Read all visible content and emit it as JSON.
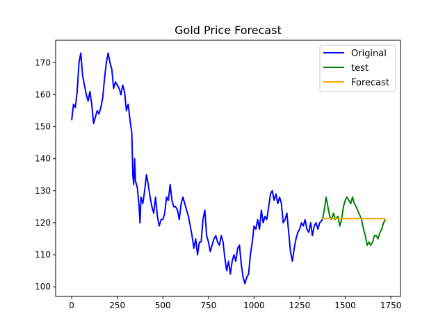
{
  "chart_data": {
    "type": "line",
    "title": "Gold Price Forecast",
    "xlabel": "",
    "ylabel": "",
    "xlim": [
      -88,
      1803
    ],
    "ylim": [
      97,
      177
    ],
    "xticks": [
      0,
      250,
      500,
      750,
      1000,
      1250,
      1500,
      1750
    ],
    "yticks": [
      100,
      110,
      120,
      130,
      140,
      150,
      160,
      170
    ],
    "grid": false,
    "legend_position": "top-right",
    "series": [
      {
        "name": "Original",
        "color": "#0000ff",
        "x": [
          0,
          10,
          20,
          30,
          40,
          50,
          60,
          70,
          80,
          90,
          100,
          110,
          120,
          130,
          140,
          150,
          160,
          170,
          180,
          190,
          200,
          210,
          220,
          230,
          240,
          250,
          260,
          270,
          280,
          290,
          300,
          310,
          320,
          330,
          335,
          340,
          345,
          350,
          360,
          370,
          375,
          380,
          390,
          400,
          410,
          420,
          430,
          440,
          450,
          460,
          470,
          480,
          490,
          500,
          510,
          520,
          530,
          540,
          550,
          560,
          570,
          580,
          590,
          600,
          610,
          620,
          630,
          640,
          650,
          660,
          670,
          680,
          690,
          700,
          710,
          720,
          730,
          740,
          750,
          760,
          770,
          780,
          790,
          800,
          810,
          820,
          830,
          840,
          850,
          860,
          870,
          880,
          890,
          900,
          910,
          920,
          930,
          940,
          950,
          960,
          970,
          980,
          990,
          1000,
          1010,
          1020,
          1030,
          1040,
          1050,
          1060,
          1070,
          1080,
          1090,
          1100,
          1110,
          1120,
          1130,
          1140,
          1150,
          1160,
          1170,
          1180,
          1190,
          1200,
          1210,
          1220,
          1230,
          1240,
          1250,
          1260,
          1270,
          1280,
          1290,
          1300,
          1310,
          1320,
          1330,
          1340,
          1350,
          1360,
          1375
        ],
        "y": [
          152,
          157,
          156,
          161,
          170,
          173,
          166,
          163,
          160,
          158,
          161,
          157,
          151,
          153,
          155,
          154,
          156,
          159,
          165,
          170,
          173,
          170,
          168,
          162,
          164,
          163,
          162,
          160,
          163,
          161,
          155,
          157,
          152,
          148,
          135,
          132,
          140,
          133,
          131,
          125,
          120,
          128,
          126,
          130,
          135,
          132,
          128,
          125,
          123,
          128,
          122,
          119,
          121,
          121,
          123,
          128,
          127,
          132,
          127,
          125,
          125,
          124,
          121,
          126,
          128,
          126,
          124,
          122,
          119,
          116,
          112,
          115,
          110,
          114,
          114,
          121,
          124,
          116,
          114,
          111,
          113,
          115,
          116,
          114,
          113,
          116,
          114,
          109,
          105,
          108,
          104,
          108,
          110,
          108,
          112,
          113,
          107,
          103,
          101,
          103,
          104,
          110,
          114,
          119,
          118,
          121,
          118,
          124,
          120,
          122,
          121,
          125,
          129,
          130,
          127,
          129,
          126,
          128,
          126,
          120,
          121,
          123,
          117,
          111,
          108,
          112,
          115,
          117,
          118,
          120,
          119,
          121,
          118,
          117,
          120,
          116,
          119,
          120,
          118,
          120,
          121
        ]
      },
      {
        "name": "test",
        "color": "#008000",
        "x": [
          1375,
          1385,
          1395,
          1405,
          1415,
          1425,
          1435,
          1445,
          1460,
          1470,
          1480,
          1490,
          1500,
          1510,
          1520,
          1530,
          1540,
          1550,
          1560,
          1575,
          1590,
          1600,
          1610,
          1620,
          1630,
          1640,
          1650,
          1660,
          1670,
          1680,
          1690,
          1700,
          1710,
          1720
        ],
        "y": [
          121,
          124,
          128,
          125,
          122,
          121,
          123,
          121,
          122,
          119,
          121,
          125,
          127,
          128,
          127,
          126,
          128,
          126,
          125,
          123,
          121,
          118,
          116,
          113,
          114,
          113,
          114,
          116,
          116,
          115,
          117,
          118,
          120,
          121
        ]
      },
      {
        "name": "Forecast",
        "color": "#ffa500",
        "x": [
          1375,
          1720
        ],
        "y": [
          121.3,
          121.3
        ]
      }
    ]
  }
}
